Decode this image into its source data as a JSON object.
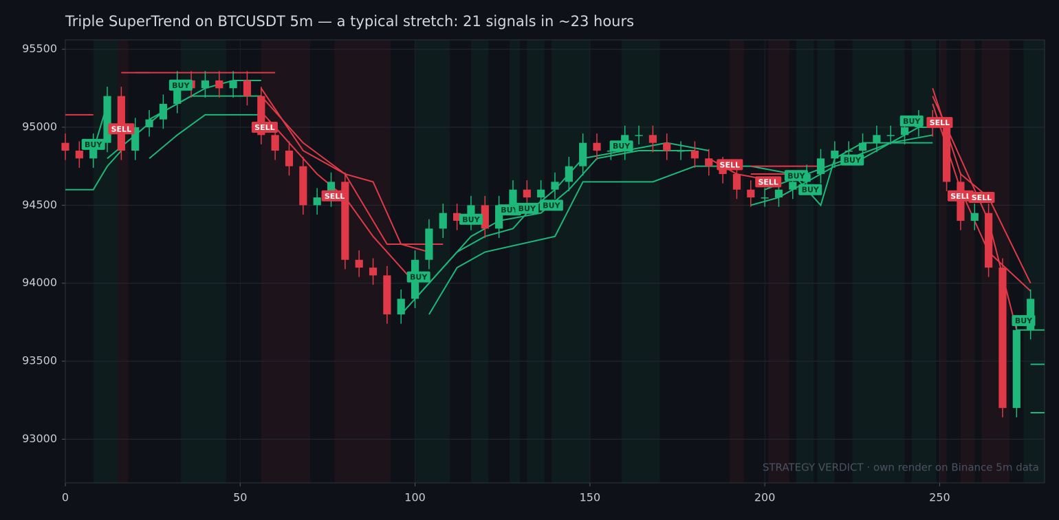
{
  "chart_data": {
    "type": "candlestick",
    "title": "Triple SuperTrend on BTCUSDT 5m  —  a typical stretch: 21 signals in ~23 hours",
    "annotation": "STRATEGY VERDICT · own render on Binance 5m data",
    "xlim": [
      0,
      280
    ],
    "xticks": [
      0,
      50,
      100,
      150,
      200,
      250
    ],
    "ylim": [
      92720,
      95560
    ],
    "yticks": [
      93000,
      93500,
      94000,
      94500,
      95000,
      95500
    ],
    "grid": true,
    "up_color": "#1db87a",
    "down_color": "#e03a48",
    "x": [
      0,
      4,
      8,
      12,
      16,
      20,
      24,
      28,
      32,
      36,
      40,
      44,
      48,
      52,
      56,
      60,
      64,
      68,
      72,
      76,
      80,
      84,
      88,
      92,
      96,
      100,
      104,
      108,
      112,
      116,
      120,
      124,
      128,
      132,
      136,
      140,
      144,
      148,
      152,
      156,
      160,
      164,
      168,
      172,
      176,
      180,
      184,
      188,
      192,
      196,
      200,
      204,
      208,
      212,
      216,
      220,
      224,
      228,
      232,
      236,
      240,
      244,
      248,
      252,
      256,
      260,
      264,
      268,
      272,
      276
    ],
    "open": [
      94900,
      94850,
      94800,
      94900,
      95200,
      94850,
      95000,
      95050,
      95150,
      95300,
      95250,
      95300,
      95250,
      95300,
      95200,
      94950,
      94850,
      94750,
      94500,
      94550,
      94650,
      94150,
      94100,
      94050,
      93800,
      93900,
      94150,
      94350,
      94450,
      94400,
      94500,
      94350,
      94500,
      94600,
      94550,
      94600,
      94650,
      94750,
      94900,
      94850,
      94850,
      94950,
      94950,
      94900,
      94850,
      94850,
      94800,
      94750,
      94700,
      94600,
      94550,
      94550,
      94600,
      94650,
      94700,
      94800,
      94850,
      94850,
      94900,
      94950,
      94950,
      95000,
      95050,
      95000,
      94650,
      94400,
      94450,
      94100,
      93200,
      93700
    ],
    "high": [
      94960,
      94910,
      94960,
      95260,
      95260,
      95060,
      95110,
      95210,
      95360,
      95360,
      95360,
      95360,
      95360,
      95360,
      95260,
      95010,
      94910,
      94810,
      94610,
      94710,
      94710,
      94210,
      94160,
      94110,
      93960,
      94210,
      94410,
      94510,
      94510,
      94560,
      94560,
      94560,
      94660,
      94660,
      94660,
      94710,
      94810,
      94960,
      94960,
      94910,
      95010,
      95010,
      95010,
      94960,
      94910,
      94910,
      94860,
      94810,
      94760,
      94660,
      94610,
      94660,
      94710,
      94760,
      94860,
      94910,
      94910,
      94960,
      95010,
      95010,
      95060,
      95110,
      95110,
      95060,
      94710,
      94510,
      94510,
      94160,
      93760,
      93960
    ],
    "low": [
      94790,
      94740,
      94740,
      94840,
      94790,
      94790,
      94940,
      94990,
      95090,
      95190,
      95190,
      95190,
      95190,
      95140,
      94890,
      94790,
      94690,
      94440,
      94440,
      94490,
      94090,
      94040,
      93990,
      93740,
      93740,
      93840,
      94090,
      94290,
      94340,
      94340,
      94290,
      94290,
      94440,
      94490,
      94490,
      94540,
      94590,
      94690,
      94790,
      94790,
      94790,
      94890,
      94840,
      94790,
      94790,
      94740,
      94690,
      94640,
      94540,
      94490,
      94490,
      94490,
      94540,
      94590,
      94640,
      94740,
      94790,
      94790,
      94840,
      94890,
      94890,
      94940,
      94940,
      94590,
      94340,
      94340,
      94040,
      93140,
      93140,
      93640
    ],
    "close": [
      94850,
      94800,
      94900,
      95200,
      94850,
      95000,
      95050,
      95150,
      95300,
      95250,
      95300,
      95250,
      95300,
      95200,
      94950,
      94850,
      94750,
      94500,
      94550,
      94650,
      94150,
      94100,
      94050,
      93800,
      93900,
      94150,
      94350,
      94450,
      94400,
      94500,
      94350,
      94500,
      94600,
      94550,
      94600,
      94650,
      94750,
      94900,
      94850,
      94850,
      94950,
      94950,
      94900,
      94850,
      94850,
      94800,
      94750,
      94700,
      94600,
      94550,
      94550,
      94600,
      94650,
      94700,
      94800,
      94850,
      94850,
      94900,
      94950,
      94950,
      95000,
      95050,
      95000,
      94650,
      94400,
      94450,
      94100,
      93200,
      93700,
      93900
    ],
    "series": [
      {
        "color": "#1db87a",
        "x": [
          8,
          12,
          16,
          20,
          24,
          32,
          40,
          48,
          56,
          60,
          96,
          104,
          112,
          120,
          128,
          132,
          140,
          148,
          160,
          172,
          184,
          188,
          196,
          204,
          212,
          220,
          228,
          236,
          244,
          248,
          252,
          272,
          280
        ],
        "values": [
          94850,
          95150,
          null,
          null,
          95050,
          95150,
          95250,
          95300,
          95300,
          null,
          93800,
          94000,
          94200,
          94300,
          94350,
          94450,
          94600,
          94800,
          94850,
          94900,
          94850,
          null,
          94500,
          94550,
          94650,
          94750,
          94800,
          94900,
          95000,
          95000,
          null,
          93700,
          93700
        ]
      },
      {
        "color": "#e03a48",
        "x": [
          0,
          8,
          12,
          16,
          24,
          28,
          56,
          64,
          72,
          80,
          88,
          96,
          100,
          104,
          184,
          192,
          204,
          208,
          248,
          256,
          264,
          272
        ],
        "values": [
          95080,
          95080,
          null,
          95350,
          95350,
          null,
          95100,
          94900,
          94700,
          94550,
          94300,
          94100,
          94000,
          null,
          94800,
          94700,
          94650,
          null,
          95200,
          94800,
          94400,
          93700
        ]
      },
      {
        "color": "#1db87a",
        "x": [
          12,
          20,
          28,
          36,
          44,
          56,
          60,
          100,
          108,
          116,
          124,
          136,
          144,
          152,
          164,
          180,
          188,
          200,
          212,
          224,
          236,
          248,
          252,
          276,
          280
        ],
        "values": [
          94800,
          94950,
          95100,
          95200,
          95200,
          95200,
          null,
          93900,
          94100,
          94300,
          94400,
          94450,
          94600,
          94800,
          94850,
          94850,
          null,
          94600,
          94700,
          94800,
          94900,
          94950,
          null,
          93480,
          93480
        ]
      },
      {
        "color": "#e03a48",
        "x": [
          20,
          60,
          64,
          56,
          68,
          80,
          88,
          96,
          104,
          108,
          196,
          212,
          216,
          248,
          256,
          264,
          276
        ],
        "values": [
          95350,
          95350,
          null,
          95200,
          94900,
          94700,
          94650,
          94250,
          94200,
          null,
          94700,
          94700,
          null,
          95150,
          94600,
          94200,
          93950
        ]
      },
      {
        "color": "#1db87a",
        "x": [
          0,
          8,
          12,
          16,
          20,
          24,
          32,
          40,
          56,
          60,
          104,
          112,
          120,
          140,
          148,
          168,
          180,
          196,
          208,
          216,
          220,
          228,
          248,
          252,
          276,
          280
        ],
        "values": [
          94600,
          94600,
          94750,
          94850,
          null,
          94800,
          94950,
          95080,
          95080,
          null,
          93800,
          94100,
          94200,
          94300,
          94650,
          94650,
          94750,
          94750,
          94700,
          94500,
          94800,
          94900,
          94900,
          null,
          93170,
          93170
        ]
      },
      {
        "color": "#e03a48",
        "x": [
          56,
          68,
          80,
          92,
          108,
          112,
          196,
          216,
          220,
          248,
          256,
          264,
          276
        ],
        "values": [
          95250,
          94850,
          94700,
          94250,
          94250,
          null,
          94750,
          94750,
          null,
          95250,
          94700,
          94550,
          94000
        ]
      }
    ],
    "regions": [
      {
        "start": 8,
        "end": 15,
        "color": "#1db87a"
      },
      {
        "start": 15,
        "end": 18,
        "color": "#e03a48"
      },
      {
        "start": 33,
        "end": 46,
        "color": "#1db87a"
      },
      {
        "start": 56,
        "end": 70,
        "color": "#e03a48"
      },
      {
        "start": 77,
        "end": 93,
        "color": "#e03a48"
      },
      {
        "start": 100,
        "end": 110,
        "color": "#1db87a"
      },
      {
        "start": 116,
        "end": 121,
        "color": "#1db87a"
      },
      {
        "start": 127,
        "end": 130,
        "color": "#1db87a"
      },
      {
        "start": 132,
        "end": 137,
        "color": "#1db87a"
      },
      {
        "start": 139,
        "end": 150,
        "color": "#1db87a"
      },
      {
        "start": 159,
        "end": 170,
        "color": "#1db87a"
      },
      {
        "start": 190,
        "end": 194,
        "color": "#e03a48"
      },
      {
        "start": 201,
        "end": 207,
        "color": "#e03a48"
      },
      {
        "start": 209,
        "end": 214,
        "color": "#1db87a"
      },
      {
        "start": 215,
        "end": 220,
        "color": "#1db87a"
      },
      {
        "start": 225,
        "end": 240,
        "color": "#1db87a"
      },
      {
        "start": 242,
        "end": 249,
        "color": "#1db87a"
      },
      {
        "start": 250,
        "end": 252,
        "color": "#e03a48"
      },
      {
        "start": 256,
        "end": 260,
        "color": "#e03a48"
      },
      {
        "start": 262,
        "end": 270,
        "color": "#e03a48"
      },
      {
        "start": 274,
        "end": 280,
        "color": "#1db87a"
      }
    ],
    "signals": [
      {
        "label": "BUY",
        "x": 8,
        "y": 94890
      },
      {
        "label": "SELL",
        "x": 16,
        "y": 94990
      },
      {
        "label": "BUY",
        "x": 33,
        "y": 95270
      },
      {
        "label": "SELL",
        "x": 57,
        "y": 95000
      },
      {
        "label": "SELL",
        "x": 77,
        "y": 94560
      },
      {
        "label": "BUY",
        "x": 101,
        "y": 94040
      },
      {
        "label": "BUY",
        "x": 116,
        "y": 94410
      },
      {
        "label": "BUY",
        "x": 127,
        "y": 94470
      },
      {
        "label": "BUY",
        "x": 132,
        "y": 94480
      },
      {
        "label": "BUY",
        "x": 139,
        "y": 94500
      },
      {
        "label": "BUY",
        "x": 159,
        "y": 94880
      },
      {
        "label": "SELL",
        "x": 190,
        "y": 94760
      },
      {
        "label": "SELL",
        "x": 201,
        "y": 94650
      },
      {
        "label": "BUY",
        "x": 209,
        "y": 94690
      },
      {
        "label": "BUY",
        "x": 213,
        "y": 94600
      },
      {
        "label": "BUY",
        "x": 225,
        "y": 94790
      },
      {
        "label": "BUY",
        "x": 242,
        "y": 95040
      },
      {
        "label": "SELL",
        "x": 250,
        "y": 95030
      },
      {
        "label": "SELL",
        "x": 256,
        "y": 94560
      },
      {
        "label": "SELL",
        "x": 262,
        "y": 94550
      },
      {
        "label": "BUY",
        "x": 274,
        "y": 93760
      }
    ]
  }
}
